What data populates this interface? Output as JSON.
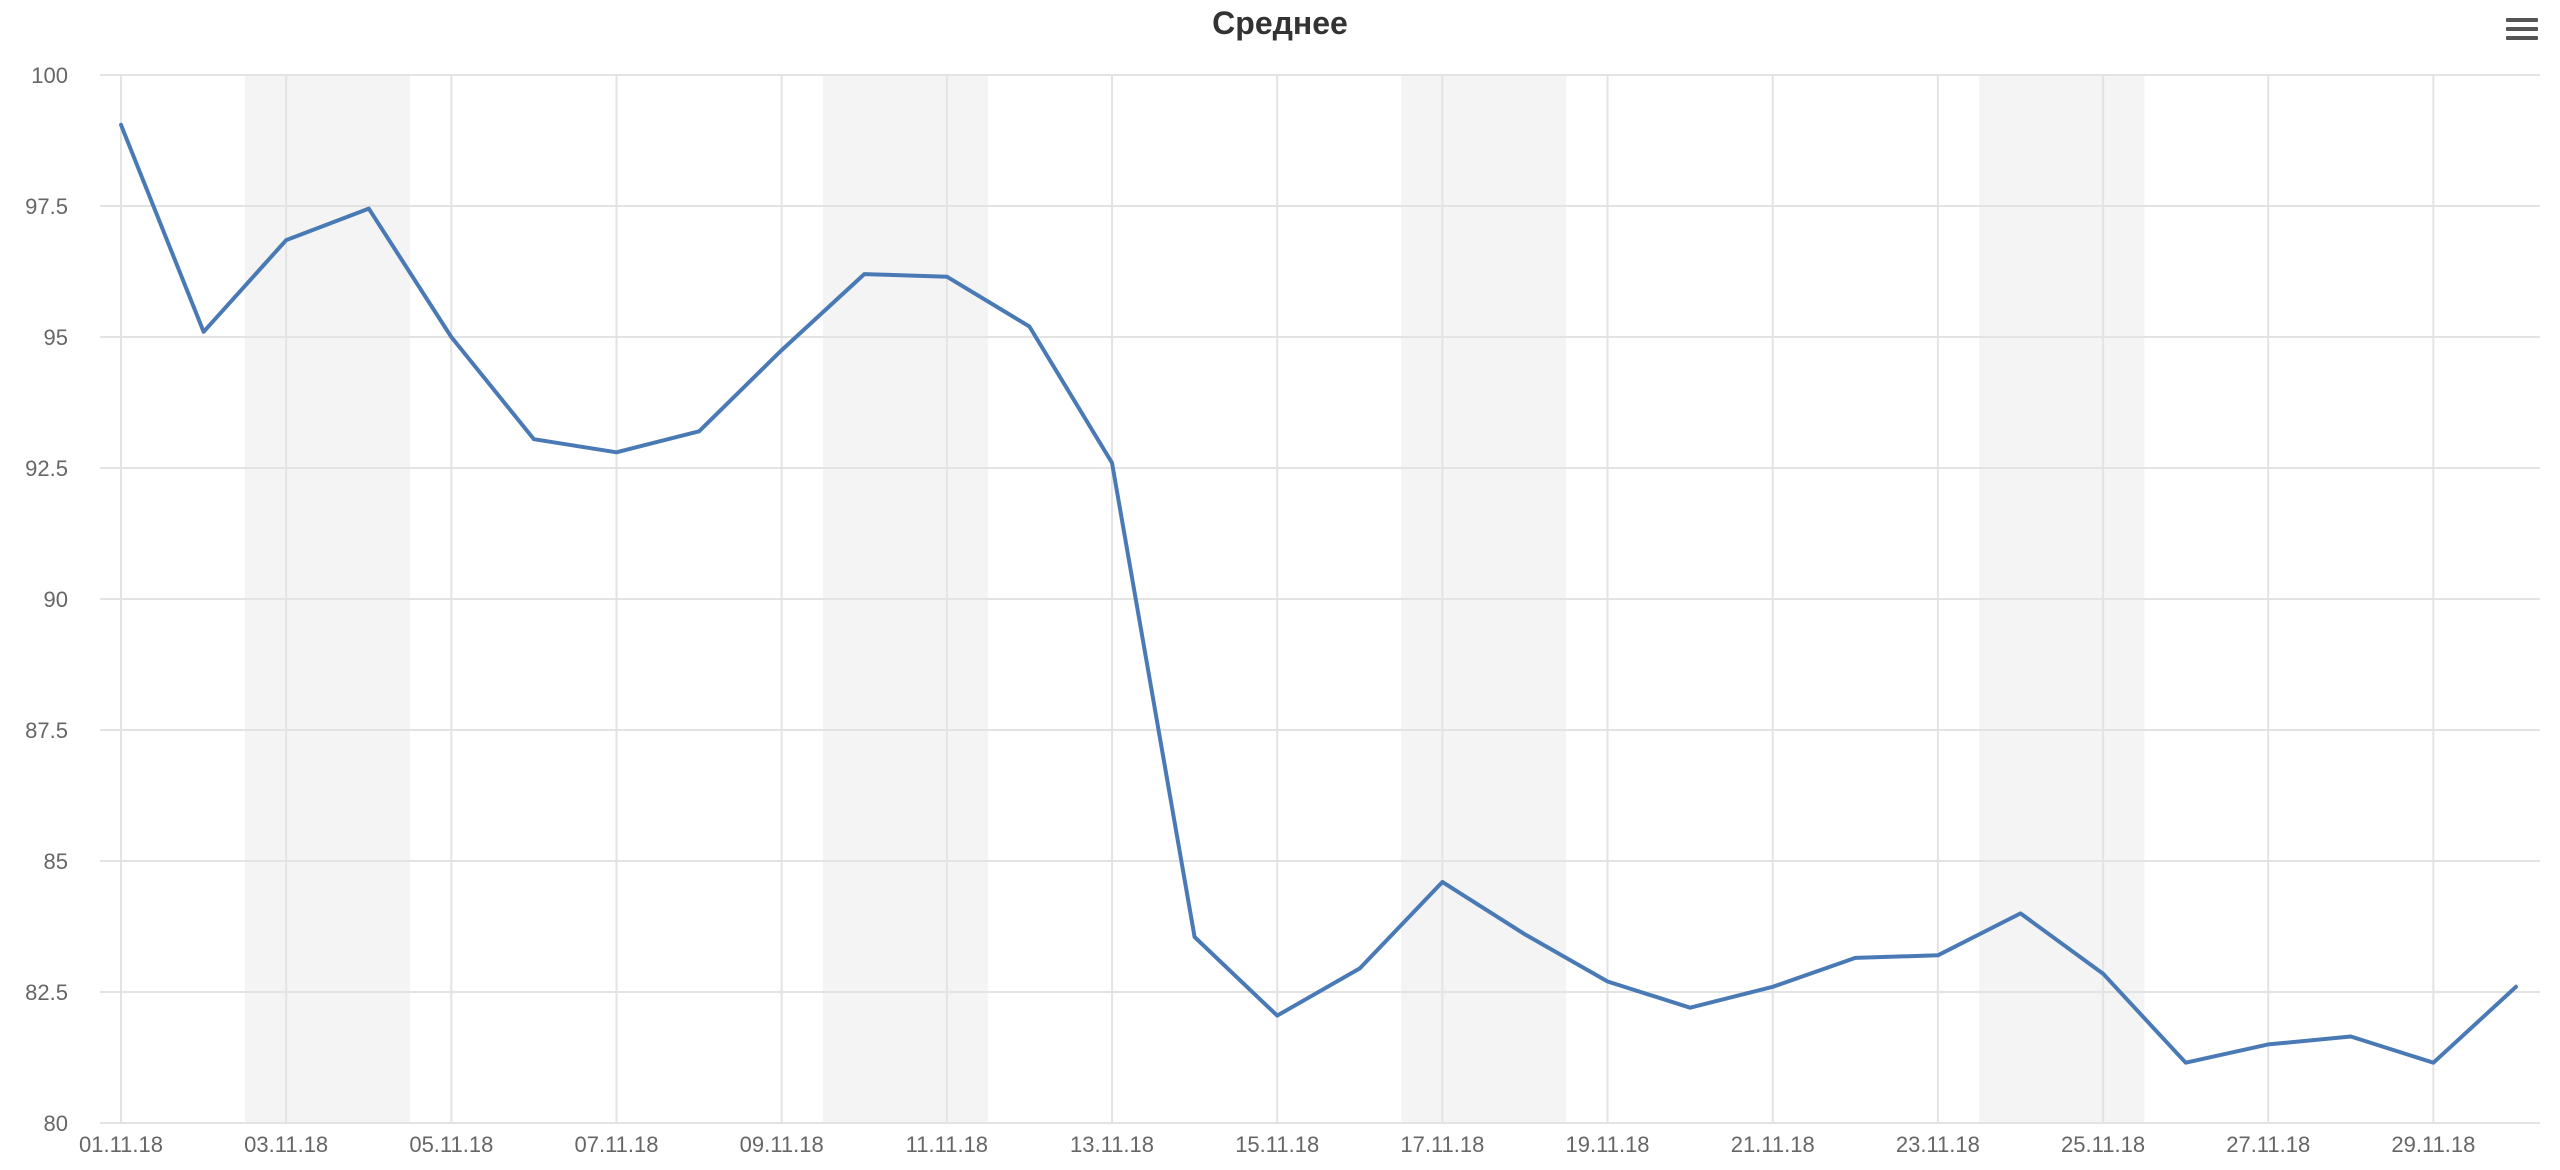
{
  "chart_data": {
    "type": "line",
    "title": "Среднее",
    "xlabel": "",
    "ylabel": "",
    "ylim": [
      80,
      100
    ],
    "yticks": [
      "80",
      "82.5",
      "85",
      "87.5",
      "90",
      "92.5",
      "95",
      "97.5",
      "100"
    ],
    "x": [
      "01.11.18",
      "02.11.18",
      "03.11.18",
      "04.11.18",
      "05.11.18",
      "06.11.18",
      "07.11.18",
      "08.11.18",
      "09.11.18",
      "10.11.18",
      "11.11.18",
      "12.11.18",
      "13.11.18",
      "14.11.18",
      "15.11.18",
      "16.11.18",
      "17.11.18",
      "18.11.18",
      "19.11.18",
      "20.11.18",
      "21.11.18",
      "22.11.18",
      "23.11.18",
      "24.11.18",
      "25.11.18",
      "26.11.18",
      "27.11.18",
      "28.11.18",
      "29.11.18",
      "30.11.18"
    ],
    "xtick_labels": [
      "01.11.18",
      "03.11.18",
      "05.11.18",
      "07.11.18",
      "09.11.18",
      "11.11.18",
      "13.11.18",
      "15.11.18",
      "17.11.18",
      "19.11.18",
      "21.11.18",
      "23.11.18",
      "25.11.18",
      "27.11.18",
      "29.11.18"
    ],
    "weekend_bands": [
      [
        "03.11.18",
        "04.11.18"
      ],
      [
        "10.11.18",
        "11.11.18"
      ],
      [
        "17.11.18",
        "18.11.18"
      ],
      [
        "24.11.18",
        "25.11.18"
      ]
    ],
    "series": [
      {
        "values": [
          99.05,
          95.1,
          96.85,
          97.45,
          95.0,
          93.05,
          92.8,
          93.2,
          94.75,
          96.2,
          96.15,
          95.2,
          92.6,
          83.55,
          82.05,
          82.95,
          84.6,
          83.6,
          82.7,
          82.2,
          82.6,
          83.15,
          83.2,
          84.0,
          82.85,
          81.15,
          81.5,
          81.65,
          81.15,
          82.6
        ],
        "color": "#4a7ab5"
      }
    ],
    "grid": true,
    "legend": "none",
    "colors": {
      "line": "#4a7ab5",
      "band": "#f4f4f4",
      "grid": "#e3e3e3"
    }
  },
  "toolbar": {
    "menu_icon": "hamburger-menu-icon"
  }
}
